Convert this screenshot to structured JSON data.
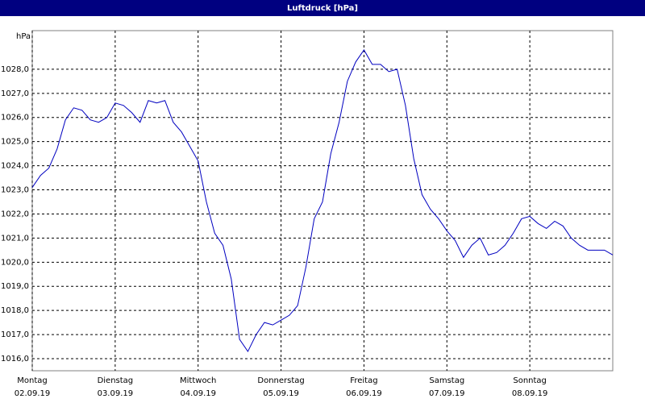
{
  "chart_data": {
    "type": "line",
    "title": "Luftdruck [hPa]",
    "y_label": "hPa",
    "x": [
      0,
      0.1,
      0.2,
      0.3,
      0.4,
      0.5,
      0.6,
      0.7,
      0.8,
      0.9,
      1,
      1.1,
      1.2,
      1.3,
      1.4,
      1.5,
      1.6,
      1.7,
      1.8,
      1.9,
      2,
      2.1,
      2.2,
      2.3,
      2.4,
      2.5,
      2.6,
      2.7,
      2.8,
      2.9,
      3,
      3.1,
      3.2,
      3.3,
      3.4,
      3.5,
      3.6,
      3.7,
      3.8,
      3.9,
      4,
      4.1,
      4.2,
      4.3,
      4.4,
      4.5,
      4.6,
      4.7,
      4.8,
      4.9,
      5,
      5.1,
      5.2,
      5.3,
      5.4,
      5.5,
      5.6,
      5.7,
      5.8,
      5.9,
      6,
      6.1,
      6.2,
      6.3,
      6.4,
      6.5,
      6.6,
      6.7,
      6.8,
      6.9,
      7
    ],
    "series": [
      {
        "name": "Luftdruck",
        "color": "#0000c0",
        "values": [
          1023.1,
          1023.6,
          1023.9,
          1024.7,
          1025.9,
          1026.4,
          1026.3,
          1025.9,
          1025.8,
          1026.0,
          1026.6,
          1026.5,
          1026.2,
          1025.8,
          1026.7,
          1026.6,
          1026.7,
          1025.8,
          1025.4,
          1024.8,
          1024.2,
          1022.5,
          1021.2,
          1020.7,
          1019.3,
          1016.8,
          1016.3,
          1017.0,
          1017.5,
          1017.4,
          1017.6,
          1017.8,
          1018.2,
          1019.8,
          1021.8,
          1022.5,
          1024.5,
          1025.8,
          1027.5,
          1028.3,
          1028.8,
          1028.2,
          1028.2,
          1027.9,
          1028.0,
          1026.5,
          1024.3,
          1022.8,
          1022.2,
          1021.8,
          1021.3,
          1020.9,
          1020.2,
          1020.7,
          1021.0,
          1020.3,
          1020.4,
          1020.7,
          1021.2,
          1021.8,
          1021.9,
          1021.6,
          1021.4,
          1021.7,
          1021.5,
          1021.0,
          1020.7,
          1020.5,
          1020.5,
          1020.5,
          1020.3
        ]
      }
    ],
    "xlim": [
      0,
      7
    ],
    "xticks": [
      {
        "value": 0,
        "label": "Montag"
      },
      {
        "value": 1,
        "label": "Dienstag"
      },
      {
        "value": 2,
        "label": "Mittwoch"
      },
      {
        "value": 3,
        "label": "Donnerstag"
      },
      {
        "value": 4,
        "label": "Freitag"
      },
      {
        "value": 5,
        "label": "Samstag"
      },
      {
        "value": 6,
        "label": "Sonntag"
      }
    ],
    "xtick_dates": [
      "02.09.19",
      "03.09.19",
      "04.09.19",
      "05.09.19",
      "06.09.19",
      "07.09.19",
      "08.09.19"
    ],
    "ylim": [
      1015.5,
      1029.6
    ],
    "yticks": [
      {
        "value": 1016,
        "label": "1016,0"
      },
      {
        "value": 1017,
        "label": "1017,0"
      },
      {
        "value": 1018,
        "label": "1018,0"
      },
      {
        "value": 1019,
        "label": "1019,0"
      },
      {
        "value": 1020,
        "label": "1020,0"
      },
      {
        "value": 1021,
        "label": "1021,0"
      },
      {
        "value": 1022,
        "label": "1022,0"
      },
      {
        "value": 1023,
        "label": "1023,0"
      },
      {
        "value": 1024,
        "label": "1024,0"
      },
      {
        "value": 1025,
        "label": "1025,0"
      },
      {
        "value": 1026,
        "label": "1026,0"
      },
      {
        "value": 1027,
        "label": "1027,0"
      },
      {
        "value": 1028,
        "label": "1028,0"
      }
    ],
    "grid": true
  }
}
